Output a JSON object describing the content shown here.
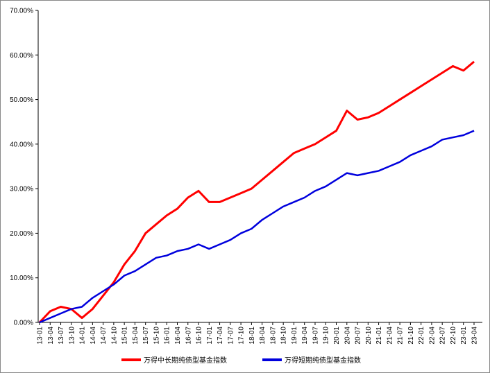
{
  "chart_data": {
    "type": "line",
    "categories": [
      "13-01",
      "13-04",
      "13-07",
      "13-10",
      "14-01",
      "14-04",
      "14-07",
      "14-10",
      "15-01",
      "15-04",
      "15-07",
      "15-10",
      "16-01",
      "16-04",
      "16-07",
      "16-10",
      "17-01",
      "17-04",
      "17-07",
      "17-10",
      "18-01",
      "18-04",
      "18-07",
      "18-10",
      "19-01",
      "19-04",
      "19-07",
      "19-10",
      "20-01",
      "20-04",
      "20-07",
      "20-10",
      "21-01",
      "21-04",
      "21-07",
      "21-10",
      "22-01",
      "22-04",
      "22-07",
      "22-10",
      "23-01",
      "23-04"
    ],
    "series": [
      {
        "name": "万得中长期纯债型基金指数",
        "color": "#ff0000",
        "values": [
          0,
          2.5,
          3.5,
          3,
          1,
          3,
          6,
          9,
          13,
          16,
          20,
          22,
          24,
          25.5,
          28,
          29.5,
          27,
          27,
          28,
          29,
          30,
          32,
          34,
          36,
          38,
          39,
          40,
          41.5,
          43,
          47.5,
          45.5,
          46,
          47,
          48.5,
          50,
          51.5,
          53,
          54.5,
          56,
          57.5,
          56.5,
          58.5
        ]
      },
      {
        "name": "万得短期纯债型基金指数",
        "color": "#0000dd",
        "values": [
          0,
          1,
          2,
          3,
          3.5,
          5.5,
          7,
          8.5,
          10.5,
          11.5,
          13,
          14.5,
          15,
          16,
          16.5,
          17.5,
          16.5,
          17.5,
          18.5,
          20,
          21,
          23,
          24.5,
          26,
          27,
          28,
          29.5,
          30.5,
          32,
          33.5,
          33,
          33.5,
          34,
          35,
          36,
          37.5,
          38.5,
          39.5,
          41,
          41.5,
          42,
          43
        ]
      }
    ],
    "ylim": [
      0,
      70
    ],
    "yticks": [
      {
        "value": 0,
        "label": "0.00%"
      },
      {
        "value": 10,
        "label": "10.00%"
      },
      {
        "value": 20,
        "label": "20.00%"
      },
      {
        "value": 30,
        "label": "30.00%"
      },
      {
        "value": 40,
        "label": "40.00%"
      },
      {
        "value": 50,
        "label": "50.00%"
      },
      {
        "value": 60,
        "label": "60.00%"
      },
      {
        "value": 70,
        "label": "70.00%"
      }
    ],
    "legend": "bottom"
  }
}
